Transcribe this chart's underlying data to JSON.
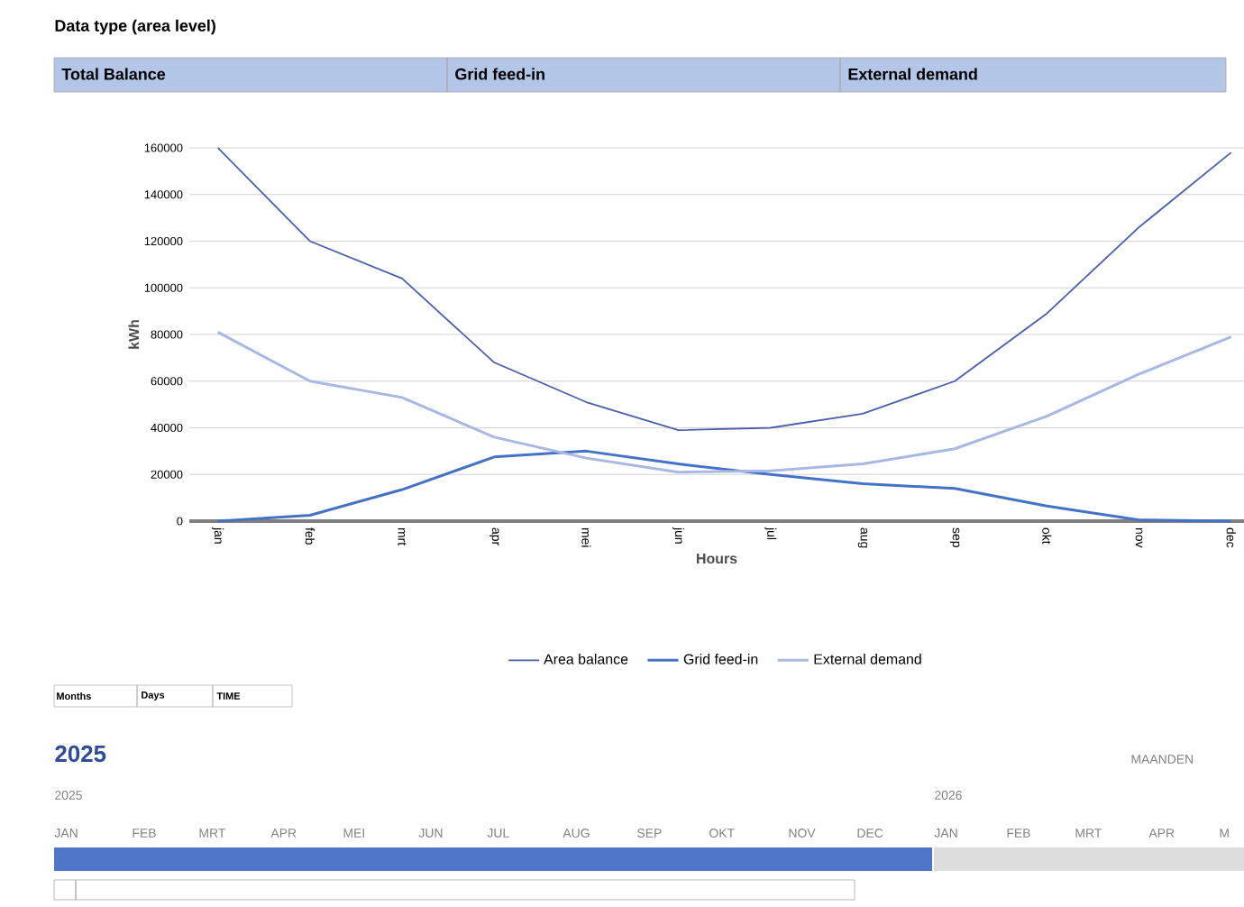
{
  "chart_data": {
    "type": "line",
    "xlabel": "Hours",
    "ylabel": "kWh",
    "categories": [
      "jan",
      "feb",
      "mrt",
      "apr",
      "mei",
      "jun",
      "jul",
      "aug",
      "sep",
      "okt",
      "nov",
      "dec"
    ],
    "series": [
      {
        "name": "Area balance",
        "color": "#4a5fa8",
        "values": [
          160000,
          120000,
          104000,
          68000,
          51000,
          39000,
          40000,
          46000,
          60000,
          89000,
          126000,
          158000
        ]
      },
      {
        "name": "Grid feed-in",
        "color": "#4472c4",
        "values": [
          0,
          2500,
          13500,
          27500,
          30000,
          24500,
          20000,
          16000,
          14000,
          6500,
          500,
          0
        ]
      },
      {
        "name": "External demand",
        "color": "#a9b8e2",
        "values": [
          81000,
          60000,
          53000,
          36000,
          27000,
          21000,
          21500,
          24500,
          31000,
          45000,
          63000,
          79000
        ]
      }
    ],
    "ylim": [
      0,
      160000
    ],
    "yticks": [
      0,
      20000,
      40000,
      60000,
      80000,
      100000,
      120000,
      140000,
      160000
    ],
    "grid": "y",
    "legend": "bottom",
    "annotations": [
      "Data type (area level)",
      "Total Balance",
      "Grid feed-in",
      "External demand",
      "Months",
      "Days",
      "TIME",
      "2025",
      "2025",
      "2026",
      "MAANDEN",
      "JAN",
      "FEB",
      "MRT",
      "APR",
      "MEI",
      "JUN",
      "JUL",
      "AUG",
      "SEP",
      "OKT",
      "NOV",
      "DEC",
      "JAN",
      "FEB",
      "MRT",
      "APR",
      "M"
    ]
  }
}
